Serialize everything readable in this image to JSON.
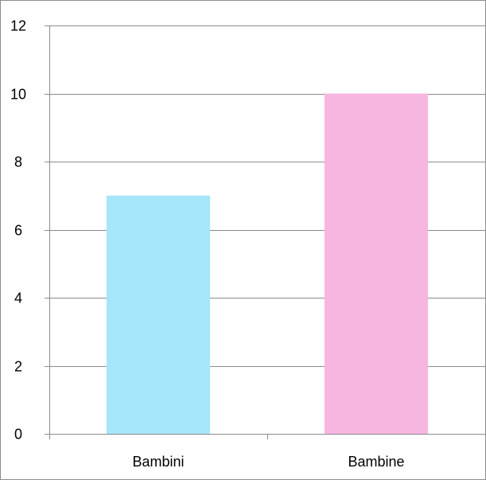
{
  "chart_data": {
    "type": "bar",
    "categories": [
      "Bambini",
      "Bambine"
    ],
    "values": [
      7,
      10
    ],
    "colors": [
      "#A6E6FB",
      "#F7B6DF"
    ],
    "ylim": [
      0,
      12
    ],
    "yticks": [
      0,
      2,
      4,
      6,
      8,
      10,
      12
    ],
    "title": "",
    "xlabel": "",
    "ylabel": "",
    "grid": true,
    "legend": "none"
  }
}
